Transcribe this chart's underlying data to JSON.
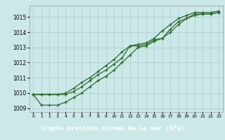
{
  "xlabel": "Graphe pression niveau de la mer (hPa)",
  "hours": [
    0,
    1,
    2,
    3,
    4,
    5,
    6,
    7,
    8,
    9,
    10,
    11,
    12,
    13,
    14,
    15,
    16,
    17,
    18,
    19,
    20,
    21,
    22,
    23
  ],
  "line_top": [
    1009.9,
    1009.9,
    1009.9,
    1009.9,
    1010.0,
    1010.3,
    1010.7,
    1011.0,
    1011.4,
    1011.8,
    1012.2,
    1012.7,
    1013.1,
    1013.2,
    1013.3,
    1013.6,
    1014.1,
    1014.5,
    1014.9,
    1015.1,
    1015.3,
    1015.3,
    1015.3,
    1015.4
  ],
  "line_mid": [
    1009.9,
    1009.9,
    1009.9,
    1009.9,
    1009.9,
    1010.1,
    1010.4,
    1010.8,
    1011.2,
    1011.5,
    1011.9,
    1012.3,
    1013.1,
    1013.1,
    1013.2,
    1013.5,
    1013.6,
    1014.2,
    1014.7,
    1014.9,
    1015.2,
    1015.2,
    1015.2,
    1015.3
  ],
  "line_bot": [
    1009.9,
    1009.2,
    1009.2,
    1009.2,
    1009.4,
    1009.7,
    1010.0,
    1010.4,
    1010.8,
    1011.1,
    1011.5,
    1012.0,
    1012.5,
    1013.0,
    1013.1,
    1013.4,
    1013.6,
    1014.0,
    1014.5,
    1014.9,
    1015.1,
    1015.2,
    1015.2,
    1015.3
  ],
  "ylim": [
    1008.75,
    1015.75
  ],
  "yticks": [
    1009,
    1010,
    1011,
    1012,
    1013,
    1014,
    1015
  ],
  "line_color": "#2d6a2d",
  "bg_color": "#cce8e8",
  "grid_color": "#aacccc",
  "label_bg": "#2d6a2d",
  "label_fg": "#ffffff",
  "label_text": "Graphe pression niveau de la mer (hPa)"
}
